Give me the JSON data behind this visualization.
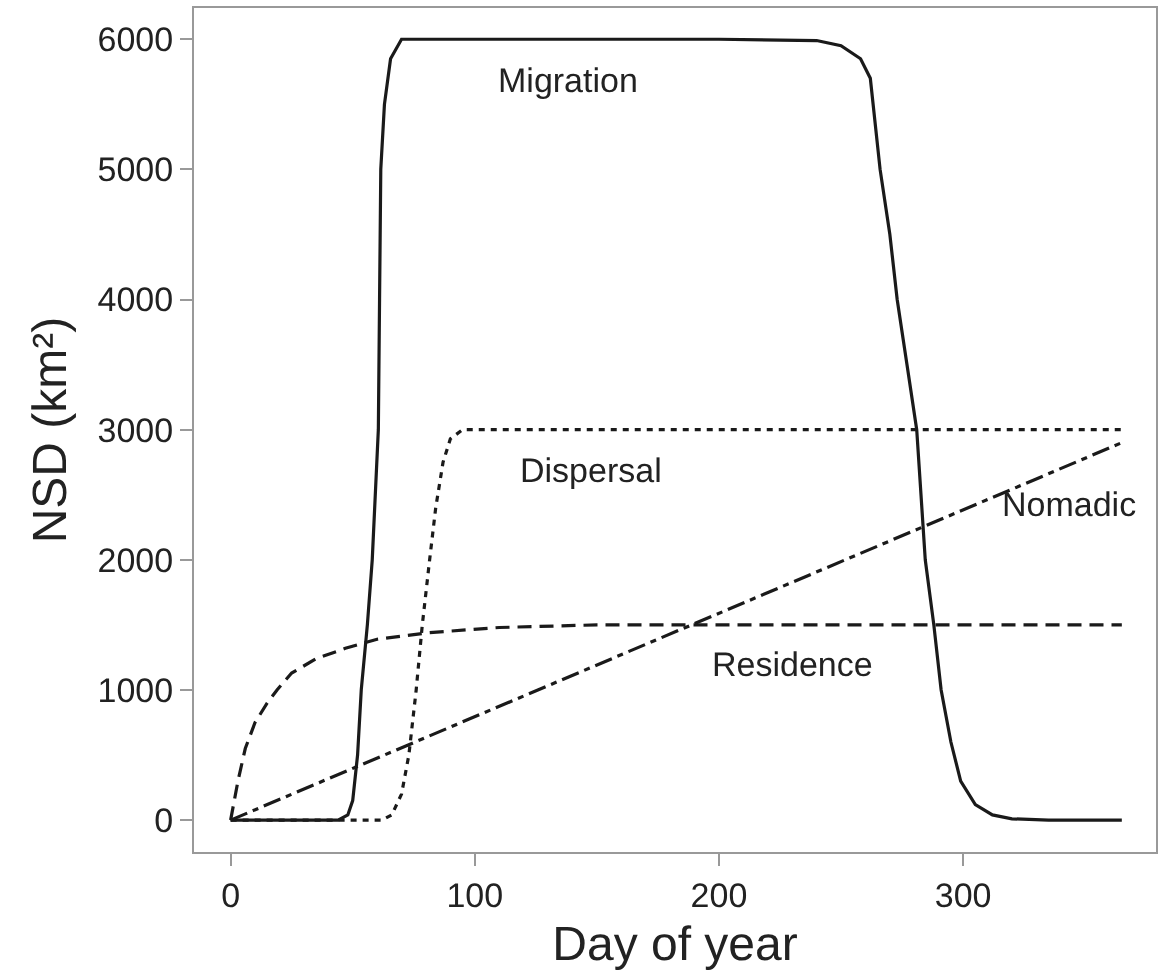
{
  "chart_data": {
    "type": "line",
    "xlabel": "Day of year",
    "ylabel": "NSD (km²)",
    "xlim": [
      -15,
      379
    ],
    "ylim": [
      -245,
      6240
    ],
    "xticks": [
      0,
      100,
      200,
      300
    ],
    "yticks": [
      0,
      1000,
      2000,
      3000,
      4000,
      5000,
      6000
    ],
    "grid": false,
    "marker": "none",
    "series": [
      {
        "color": "#1a1a1a",
        "line_style": "solid",
        "x": [
          0,
          44,
          48,
          50,
          52,
          53.5,
          56,
          58,
          60.5,
          61,
          61.5,
          63,
          65.5,
          70,
          100,
          200,
          240,
          250,
          258,
          262,
          266,
          270,
          273,
          277,
          281,
          284.5,
          288,
          291,
          295,
          299,
          305,
          312,
          320,
          335,
          365
        ],
        "values": [
          0,
          0,
          40,
          150,
          500,
          1000,
          1500,
          2000,
          3000,
          4000,
          5000,
          5500,
          5850,
          6000,
          6000,
          6000,
          5990,
          5950,
          5850,
          5700,
          5000,
          4500,
          4000,
          3500,
          3000,
          2000,
          1500,
          1000,
          600,
          300,
          120,
          40,
          10,
          0,
          0
        ]
      },
      {
        "color": "#1a1a1a",
        "line_style": "dotted",
        "x": [
          0,
          50,
          62,
          66,
          70,
          73,
          76,
          78.5,
          81.5,
          84,
          87,
          90,
          95,
          365
        ],
        "values": [
          0,
          0,
          0,
          40,
          200,
          500,
          1000,
          1500,
          2000,
          2400,
          2750,
          2930,
          3000,
          3000
        ]
      },
      {
        "color": "#1a1a1a",
        "line_style": "dashed",
        "x": [
          0,
          3,
          6,
          10,
          15,
          19,
          25,
          35,
          47,
          60,
          81,
          110,
          150,
          200,
          365
        ],
        "values": [
          0,
          300,
          550,
          750,
          900,
          1000,
          1130,
          1240,
          1320,
          1390,
          1440,
          1480,
          1500,
          1500,
          1500
        ]
      },
      {
        "color": "#1a1a1a",
        "line_style": "dashdot",
        "x": [
          0,
          365
        ],
        "values": [
          0,
          2900
        ]
      }
    ],
    "annotations": [
      {
        "text": "Migration",
        "x": 138,
        "y": 6000
      },
      {
        "text": "Dispersal",
        "x": 148,
        "y": 3000
      },
      {
        "text": "Nomadic",
        "x": 344,
        "y": 2730
      },
      {
        "text": "Residence",
        "x": 230,
        "y": 1500
      }
    ]
  }
}
